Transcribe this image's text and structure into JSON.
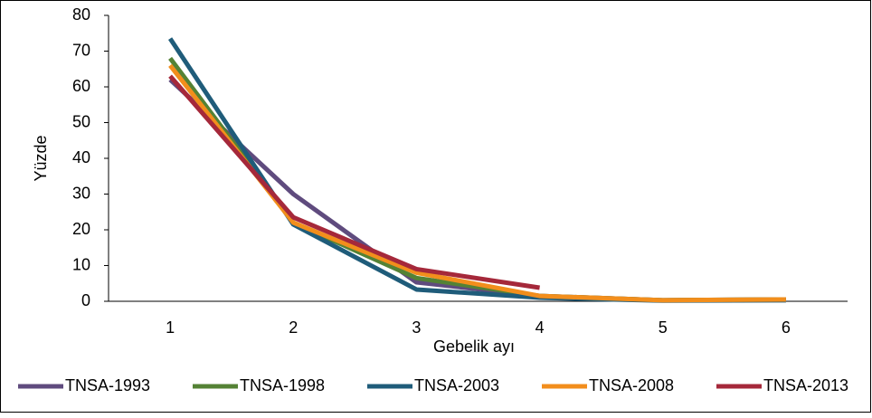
{
  "chart_data": {
    "type": "line",
    "x_label": "Gebelik ayı",
    "y_label": "Yüzde",
    "categories": [
      "1",
      "2",
      "3",
      "4",
      "5",
      "6"
    ],
    "series": [
      {
        "name": "TNSA-1993",
        "color": "#5f4b7e",
        "values": [
          62,
          30,
          5.3,
          1.5,
          0.3,
          0.5
        ]
      },
      {
        "name": "TNSA-1998",
        "color": "#548235",
        "values": [
          68,
          22,
          6.5,
          1.5,
          0.3,
          0.5
        ]
      },
      {
        "name": "TNSA-2003",
        "color": "#1f5c7a",
        "values": [
          73.5,
          21.5,
          3.3,
          1,
          0.2,
          0.3
        ]
      },
      {
        "name": "TNSA-2008",
        "color": "#f28e1c",
        "values": [
          66,
          22,
          8,
          1.5,
          0.3,
          0.5
        ]
      },
      {
        "name": "TNSA-2013",
        "color": "#a5283a",
        "values": [
          63,
          23.5,
          9,
          3.8,
          null,
          null
        ]
      }
    ],
    "ylim": [
      0,
      80
    ],
    "yticks": [
      0,
      10,
      20,
      30,
      40,
      50,
      60,
      70,
      80
    ],
    "legend": "bottom",
    "grid": false
  }
}
